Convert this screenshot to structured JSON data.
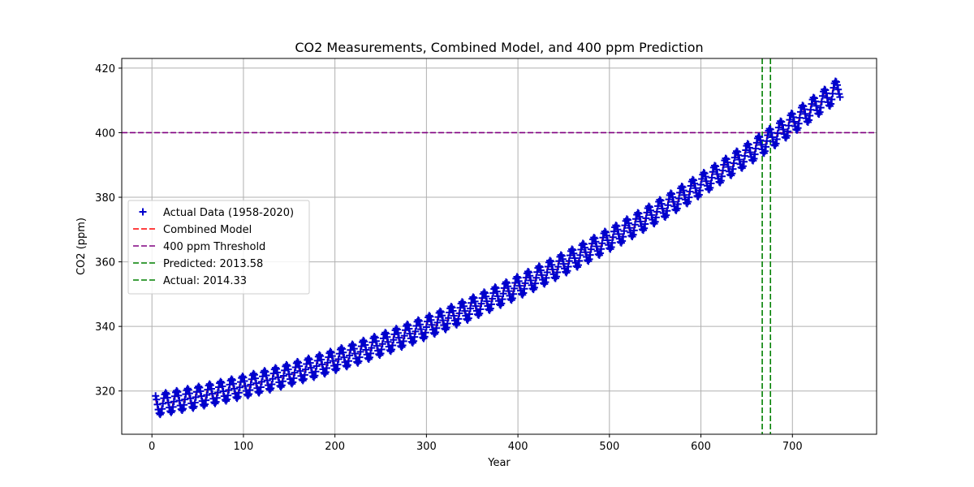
{
  "chart_data": {
    "type": "line",
    "title": "CO2 Measurements, Combined Model, and 400 ppm Prediction",
    "xlabel": "Year",
    "ylabel": "CO2 (ppm)",
    "xlim": [
      -33,
      792
    ],
    "ylim": [
      306.6,
      423
    ],
    "xticks": [
      0,
      100,
      200,
      300,
      400,
      500,
      600,
      700
    ],
    "yticks": [
      320,
      340,
      360,
      380,
      400,
      420
    ],
    "grid": true,
    "legend_position": "center-left",
    "series": [
      {
        "name": "Actual Data (1958-2020)",
        "kind": "scatter",
        "marker": "plus",
        "color": "#0000cc",
        "x_start": 4,
        "x_end": 752,
        "trend": {
          "a": 315.5,
          "b": 0.048,
          "c": 0.00011
        },
        "seasonal_amplitude": 3.2,
        "seasonal_period": 12
      },
      {
        "name": "Combined Model",
        "kind": "line",
        "style": "dashed",
        "color": "#ff0000",
        "x_start": 4,
        "x_end": 752,
        "trend": {
          "a": 315.5,
          "b": 0.048,
          "c": 0.00011
        },
        "seasonal_amplitude": 2.8,
        "seasonal_period": 12
      },
      {
        "name": "400 ppm Threshold",
        "kind": "hline",
        "style": "dashed",
        "color": "#800080",
        "y": 400
      },
      {
        "name": "Predicted: 2013.58",
        "kind": "vline",
        "style": "dashed",
        "color": "#008000",
        "x": 667
      },
      {
        "name": "Actual: 2014.33",
        "kind": "vline",
        "style": "dashed",
        "color": "#008000",
        "x": 676
      }
    ]
  }
}
